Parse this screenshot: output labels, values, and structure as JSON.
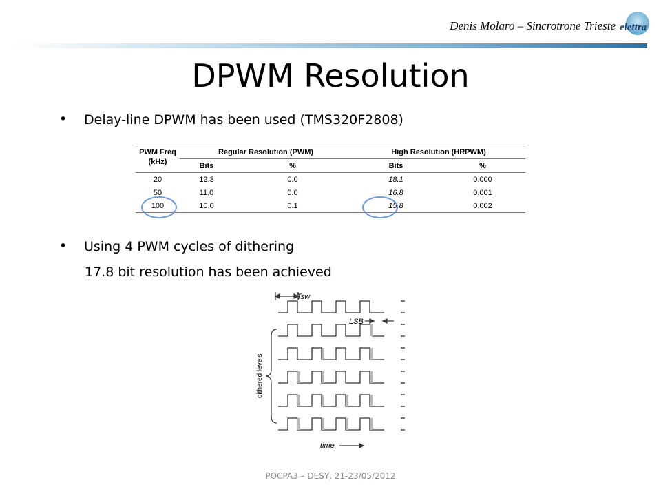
{
  "header": {
    "author": "Denis Molaro – Sincrotrone Trieste",
    "logo_text": "elettra",
    "logo_icon": "elettra-logo-icon"
  },
  "title": "DPWM Resolution",
  "bullets": [
    {
      "text": "Delay-line DPWM has been used (TMS320F2808)"
    },
    {
      "text": "Using 4 PWM cycles of dithering",
      "sub": "17.8 bit resolution has been achieved"
    }
  ],
  "table": {
    "col1_line1": "PWM Freq",
    "col1_line2": "(kHz)",
    "group1": "Regular Resolution (PWM)",
    "group2": "High Resolution (HRPWM)",
    "subheaders": [
      "Bits",
      "%",
      "Bits",
      "%"
    ],
    "rows": [
      [
        "20",
        "12.3",
        "0.0",
        "18.1",
        "0.000"
      ],
      [
        "50",
        "11.0",
        "0.0",
        "16.8",
        "0.001"
      ],
      [
        "100",
        "10.0",
        "0.1",
        "15.8",
        "0.002"
      ]
    ]
  },
  "diagram": {
    "tsw_label": "Tsw",
    "lsb_label": "LSB",
    "levels_label": "dithered levels",
    "time_label": "time"
  },
  "footer": "POCPA3 – DESY, 21-23/05/2012"
}
